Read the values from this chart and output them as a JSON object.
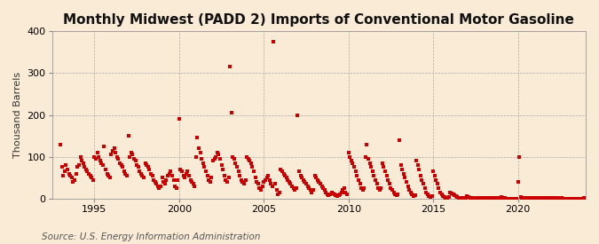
{
  "title": "Monthly Midwest (PADD 2) Imports of Conventional Motor Gasoline",
  "ylabel": "Thousand Barrels",
  "source": "Source: U.S. Energy Information Administration",
  "background_color": "#faebd7",
  "plot_bg_color": "#faebd7",
  "marker_color": "#cc0000",
  "marker_size": 4,
  "xlim": [
    1992.5,
    2024.0
  ],
  "ylim": [
    0,
    400
  ],
  "yticks": [
    0,
    100,
    200,
    300,
    400
  ],
  "xticks": [
    1995,
    2000,
    2005,
    2010,
    2015,
    2020
  ],
  "grid_color": "#aaaaaa",
  "title_fontsize": 11,
  "label_fontsize": 8,
  "tick_fontsize": 8,
  "source_fontsize": 7.5,
  "data": [
    [
      1993.0,
      130
    ],
    [
      1993.08,
      75
    ],
    [
      1993.17,
      55
    ],
    [
      1993.25,
      65
    ],
    [
      1993.33,
      80
    ],
    [
      1993.42,
      70
    ],
    [
      1993.5,
      60
    ],
    [
      1993.58,
      55
    ],
    [
      1993.67,
      50
    ],
    [
      1993.75,
      40
    ],
    [
      1993.83,
      45
    ],
    [
      1993.92,
      60
    ],
    [
      1994.0,
      75
    ],
    [
      1994.08,
      80
    ],
    [
      1994.17,
      100
    ],
    [
      1994.25,
      90
    ],
    [
      1994.33,
      85
    ],
    [
      1994.42,
      75
    ],
    [
      1994.5,
      70
    ],
    [
      1994.58,
      65
    ],
    [
      1994.67,
      60
    ],
    [
      1994.75,
      55
    ],
    [
      1994.83,
      50
    ],
    [
      1994.92,
      45
    ],
    [
      1995.0,
      100
    ],
    [
      1995.08,
      95
    ],
    [
      1995.17,
      110
    ],
    [
      1995.25,
      100
    ],
    [
      1995.33,
      90
    ],
    [
      1995.42,
      85
    ],
    [
      1995.5,
      80
    ],
    [
      1995.58,
      125
    ],
    [
      1995.67,
      70
    ],
    [
      1995.75,
      60
    ],
    [
      1995.83,
      55
    ],
    [
      1995.92,
      50
    ],
    [
      1996.0,
      105
    ],
    [
      1996.08,
      115
    ],
    [
      1996.17,
      120
    ],
    [
      1996.25,
      110
    ],
    [
      1996.33,
      100
    ],
    [
      1996.42,
      95
    ],
    [
      1996.5,
      85
    ],
    [
      1996.58,
      80
    ],
    [
      1996.67,
      75
    ],
    [
      1996.75,
      65
    ],
    [
      1996.83,
      60
    ],
    [
      1996.92,
      55
    ],
    [
      1997.0,
      150
    ],
    [
      1997.08,
      100
    ],
    [
      1997.17,
      110
    ],
    [
      1997.25,
      105
    ],
    [
      1997.33,
      95
    ],
    [
      1997.42,
      90
    ],
    [
      1997.5,
      80
    ],
    [
      1997.58,
      75
    ],
    [
      1997.67,
      65
    ],
    [
      1997.75,
      60
    ],
    [
      1997.83,
      55
    ],
    [
      1997.92,
      50
    ],
    [
      1998.0,
      85
    ],
    [
      1998.08,
      80
    ],
    [
      1998.17,
      75
    ],
    [
      1998.25,
      70
    ],
    [
      1998.33,
      60
    ],
    [
      1998.42,
      55
    ],
    [
      1998.5,
      45
    ],
    [
      1998.58,
      40
    ],
    [
      1998.67,
      35
    ],
    [
      1998.75,
      30
    ],
    [
      1998.83,
      25
    ],
    [
      1998.92,
      30
    ],
    [
      1999.0,
      50
    ],
    [
      1999.08,
      40
    ],
    [
      1999.17,
      35
    ],
    [
      1999.25,
      45
    ],
    [
      1999.33,
      55
    ],
    [
      1999.42,
      60
    ],
    [
      1999.5,
      65
    ],
    [
      1999.58,
      55
    ],
    [
      1999.67,
      45
    ],
    [
      1999.75,
      30
    ],
    [
      1999.83,
      25
    ],
    [
      1999.92,
      45
    ],
    [
      2000.0,
      190
    ],
    [
      2000.08,
      70
    ],
    [
      2000.17,
      65
    ],
    [
      2000.25,
      55
    ],
    [
      2000.33,
      50
    ],
    [
      2000.42,
      60
    ],
    [
      2000.5,
      65
    ],
    [
      2000.58,
      55
    ],
    [
      2000.67,
      45
    ],
    [
      2000.75,
      40
    ],
    [
      2000.83,
      35
    ],
    [
      2000.92,
      30
    ],
    [
      2001.0,
      100
    ],
    [
      2001.08,
      145
    ],
    [
      2001.17,
      120
    ],
    [
      2001.25,
      110
    ],
    [
      2001.33,
      95
    ],
    [
      2001.42,
      85
    ],
    [
      2001.5,
      75
    ],
    [
      2001.58,
      65
    ],
    [
      2001.67,
      55
    ],
    [
      2001.75,
      45
    ],
    [
      2001.83,
      40
    ],
    [
      2001.92,
      50
    ],
    [
      2002.0,
      90
    ],
    [
      2002.08,
      95
    ],
    [
      2002.17,
      100
    ],
    [
      2002.25,
      110
    ],
    [
      2002.33,
      105
    ],
    [
      2002.42,
      95
    ],
    [
      2002.5,
      80
    ],
    [
      2002.58,
      70
    ],
    [
      2002.67,
      55
    ],
    [
      2002.75,
      45
    ],
    [
      2002.83,
      40
    ],
    [
      2002.92,
      50
    ],
    [
      2003.0,
      315
    ],
    [
      2003.08,
      205
    ],
    [
      2003.17,
      100
    ],
    [
      2003.25,
      95
    ],
    [
      2003.33,
      85
    ],
    [
      2003.42,
      75
    ],
    [
      2003.5,
      65
    ],
    [
      2003.58,
      55
    ],
    [
      2003.67,
      45
    ],
    [
      2003.75,
      40
    ],
    [
      2003.83,
      35
    ],
    [
      2003.92,
      45
    ],
    [
      2004.0,
      100
    ],
    [
      2004.08,
      95
    ],
    [
      2004.17,
      90
    ],
    [
      2004.25,
      85
    ],
    [
      2004.33,
      75
    ],
    [
      2004.42,
      65
    ],
    [
      2004.5,
      50
    ],
    [
      2004.58,
      40
    ],
    [
      2004.67,
      35
    ],
    [
      2004.75,
      25
    ],
    [
      2004.83,
      20
    ],
    [
      2004.92,
      30
    ],
    [
      2005.0,
      40
    ],
    [
      2005.08,
      45
    ],
    [
      2005.17,
      50
    ],
    [
      2005.25,
      55
    ],
    [
      2005.33,
      45
    ],
    [
      2005.42,
      35
    ],
    [
      2005.5,
      30
    ],
    [
      2005.58,
      375
    ],
    [
      2005.67,
      35
    ],
    [
      2005.75,
      20
    ],
    [
      2005.83,
      10
    ],
    [
      2005.92,
      15
    ],
    [
      2006.0,
      70
    ],
    [
      2006.08,
      65
    ],
    [
      2006.17,
      60
    ],
    [
      2006.25,
      55
    ],
    [
      2006.33,
      50
    ],
    [
      2006.42,
      45
    ],
    [
      2006.5,
      40
    ],
    [
      2006.58,
      35
    ],
    [
      2006.67,
      30
    ],
    [
      2006.75,
      25
    ],
    [
      2006.83,
      20
    ],
    [
      2006.92,
      25
    ],
    [
      2007.0,
      200
    ],
    [
      2007.08,
      65
    ],
    [
      2007.17,
      55
    ],
    [
      2007.25,
      50
    ],
    [
      2007.33,
      45
    ],
    [
      2007.42,
      40
    ],
    [
      2007.5,
      35
    ],
    [
      2007.58,
      30
    ],
    [
      2007.67,
      25
    ],
    [
      2007.75,
      20
    ],
    [
      2007.83,
      15
    ],
    [
      2007.92,
      20
    ],
    [
      2008.0,
      55
    ],
    [
      2008.08,
      50
    ],
    [
      2008.17,
      45
    ],
    [
      2008.25,
      40
    ],
    [
      2008.33,
      35
    ],
    [
      2008.42,
      30
    ],
    [
      2008.5,
      25
    ],
    [
      2008.58,
      20
    ],
    [
      2008.67,
      15
    ],
    [
      2008.75,
      10
    ],
    [
      2008.83,
      8
    ],
    [
      2008.92,
      10
    ],
    [
      2009.0,
      15
    ],
    [
      2009.08,
      12
    ],
    [
      2009.17,
      10
    ],
    [
      2009.25,
      8
    ],
    [
      2009.33,
      5
    ],
    [
      2009.42,
      8
    ],
    [
      2009.5,
      10
    ],
    [
      2009.58,
      15
    ],
    [
      2009.67,
      20
    ],
    [
      2009.75,
      25
    ],
    [
      2009.83,
      15
    ],
    [
      2009.92,
      10
    ],
    [
      2010.0,
      110
    ],
    [
      2010.08,
      100
    ],
    [
      2010.17,
      90
    ],
    [
      2010.25,
      85
    ],
    [
      2010.33,
      75
    ],
    [
      2010.42,
      65
    ],
    [
      2010.5,
      55
    ],
    [
      2010.58,
      45
    ],
    [
      2010.67,
      35
    ],
    [
      2010.75,
      25
    ],
    [
      2010.83,
      20
    ],
    [
      2010.92,
      25
    ],
    [
      2011.0,
      100
    ],
    [
      2011.08,
      130
    ],
    [
      2011.17,
      95
    ],
    [
      2011.25,
      85
    ],
    [
      2011.33,
      75
    ],
    [
      2011.42,
      65
    ],
    [
      2011.5,
      55
    ],
    [
      2011.58,
      45
    ],
    [
      2011.67,
      35
    ],
    [
      2011.75,
      25
    ],
    [
      2011.83,
      20
    ],
    [
      2011.92,
      25
    ],
    [
      2012.0,
      85
    ],
    [
      2012.08,
      75
    ],
    [
      2012.17,
      65
    ],
    [
      2012.25,
      55
    ],
    [
      2012.33,
      45
    ],
    [
      2012.42,
      35
    ],
    [
      2012.5,
      25
    ],
    [
      2012.58,
      20
    ],
    [
      2012.67,
      15
    ],
    [
      2012.75,
      10
    ],
    [
      2012.83,
      8
    ],
    [
      2012.92,
      10
    ],
    [
      2013.0,
      140
    ],
    [
      2013.08,
      80
    ],
    [
      2013.17,
      70
    ],
    [
      2013.25,
      60
    ],
    [
      2013.33,
      50
    ],
    [
      2013.42,
      40
    ],
    [
      2013.5,
      30
    ],
    [
      2013.58,
      20
    ],
    [
      2013.67,
      15
    ],
    [
      2013.75,
      10
    ],
    [
      2013.83,
      5
    ],
    [
      2013.92,
      8
    ],
    [
      2014.0,
      90
    ],
    [
      2014.08,
      80
    ],
    [
      2014.17,
      70
    ],
    [
      2014.25,
      55
    ],
    [
      2014.33,
      45
    ],
    [
      2014.42,
      35
    ],
    [
      2014.5,
      25
    ],
    [
      2014.58,
      15
    ],
    [
      2014.67,
      10
    ],
    [
      2014.75,
      5
    ],
    [
      2014.83,
      3
    ],
    [
      2014.92,
      5
    ],
    [
      2015.0,
      65
    ],
    [
      2015.08,
      55
    ],
    [
      2015.17,
      45
    ],
    [
      2015.25,
      35
    ],
    [
      2015.33,
      25
    ],
    [
      2015.42,
      15
    ],
    [
      2015.5,
      10
    ],
    [
      2015.58,
      5
    ],
    [
      2015.67,
      3
    ],
    [
      2015.75,
      2
    ],
    [
      2015.83,
      2
    ],
    [
      2015.92,
      3
    ],
    [
      2016.0,
      15
    ],
    [
      2016.08,
      12
    ],
    [
      2016.17,
      10
    ],
    [
      2016.25,
      8
    ],
    [
      2016.33,
      5
    ],
    [
      2016.42,
      3
    ],
    [
      2016.5,
      2
    ],
    [
      2016.58,
      2
    ],
    [
      2016.67,
      2
    ],
    [
      2016.75,
      2
    ],
    [
      2016.83,
      2
    ],
    [
      2016.92,
      2
    ],
    [
      2017.0,
      5
    ],
    [
      2017.08,
      3
    ],
    [
      2017.17,
      2
    ],
    [
      2017.25,
      2
    ],
    [
      2017.33,
      2
    ],
    [
      2017.42,
      2
    ],
    [
      2017.5,
      2
    ],
    [
      2017.58,
      2
    ],
    [
      2017.67,
      2
    ],
    [
      2017.75,
      2
    ],
    [
      2017.83,
      2
    ],
    [
      2017.92,
      2
    ],
    [
      2018.0,
      2
    ],
    [
      2018.08,
      2
    ],
    [
      2018.17,
      2
    ],
    [
      2018.25,
      2
    ],
    [
      2018.33,
      2
    ],
    [
      2018.42,
      2
    ],
    [
      2018.5,
      2
    ],
    [
      2018.58,
      2
    ],
    [
      2018.67,
      2
    ],
    [
      2018.75,
      2
    ],
    [
      2018.83,
      2
    ],
    [
      2018.92,
      2
    ],
    [
      2019.0,
      3
    ],
    [
      2019.08,
      2
    ],
    [
      2019.17,
      2
    ],
    [
      2019.25,
      2
    ],
    [
      2019.33,
      0
    ],
    [
      2019.42,
      0
    ],
    [
      2019.5,
      0
    ],
    [
      2019.58,
      0
    ],
    [
      2019.67,
      0
    ],
    [
      2019.75,
      0
    ],
    [
      2019.83,
      0
    ],
    [
      2019.92,
      0
    ],
    [
      2020.0,
      40
    ],
    [
      2020.08,
      100
    ],
    [
      2020.17,
      3
    ],
    [
      2020.25,
      2
    ],
    [
      2020.33,
      2
    ],
    [
      2020.42,
      2
    ],
    [
      2020.5,
      2
    ],
    [
      2020.58,
      2
    ],
    [
      2020.67,
      2
    ],
    [
      2020.75,
      2
    ],
    [
      2020.83,
      2
    ],
    [
      2020.92,
      2
    ],
    [
      2021.0,
      2
    ],
    [
      2021.08,
      2
    ],
    [
      2021.17,
      2
    ],
    [
      2021.25,
      2
    ],
    [
      2021.33,
      2
    ],
    [
      2021.42,
      2
    ],
    [
      2021.5,
      2
    ],
    [
      2021.58,
      2
    ],
    [
      2021.67,
      2
    ],
    [
      2021.75,
      2
    ],
    [
      2021.83,
      2
    ],
    [
      2021.92,
      2
    ],
    [
      2022.0,
      2
    ],
    [
      2022.08,
      2
    ],
    [
      2022.17,
      2
    ],
    [
      2022.25,
      2
    ],
    [
      2022.33,
      2
    ],
    [
      2022.42,
      2
    ],
    [
      2022.5,
      2
    ],
    [
      2022.58,
      2
    ],
    [
      2022.67,
      0
    ],
    [
      2022.75,
      0
    ],
    [
      2022.83,
      0
    ],
    [
      2022.92,
      0
    ],
    [
      2023.0,
      0
    ],
    [
      2023.08,
      0
    ],
    [
      2023.17,
      0
    ],
    [
      2023.25,
      0
    ],
    [
      2023.33,
      0
    ],
    [
      2023.42,
      0
    ],
    [
      2023.5,
      0
    ],
    [
      2023.58,
      0
    ],
    [
      2023.67,
      0
    ],
    [
      2023.75,
      0
    ],
    [
      2023.83,
      0
    ],
    [
      2023.92,
      2
    ]
  ]
}
